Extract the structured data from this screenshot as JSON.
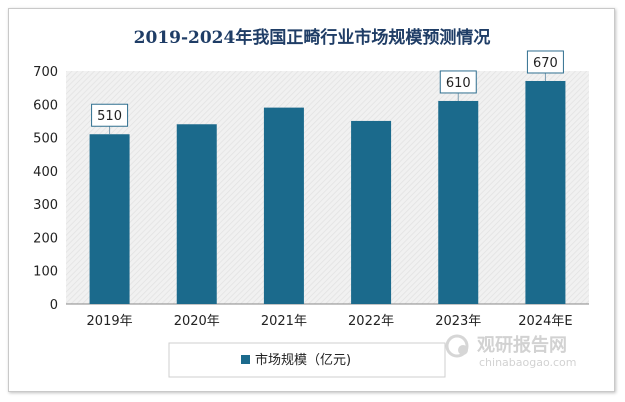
{
  "chart_data": {
    "type": "bar",
    "title": "2019-2024年我国正畸行业市场规模预测情况",
    "categories": [
      "2019年",
      "2020年",
      "2021年",
      "2022年",
      "2023年",
      "2024年E"
    ],
    "series": [
      {
        "name": "市场规模（亿元)",
        "values": [
          510,
          540,
          590,
          550,
          610,
          670
        ],
        "color": "#1b6a8c"
      }
    ],
    "data_labels": [
      {
        "index": 0,
        "text": "510"
      },
      {
        "index": 4,
        "text": "610"
      },
      {
        "index": 5,
        "text": "670"
      }
    ],
    "yticks": [
      0,
      100,
      200,
      300,
      400,
      500,
      600,
      700
    ],
    "ylim": [
      0,
      700
    ],
    "xlabel": "",
    "ylabel": "",
    "grid": false,
    "legend_position": "bottom",
    "plot_background": "hatched-gray"
  },
  "watermark": {
    "cn": "观研报告网",
    "en": "chinabaogao.com"
  }
}
